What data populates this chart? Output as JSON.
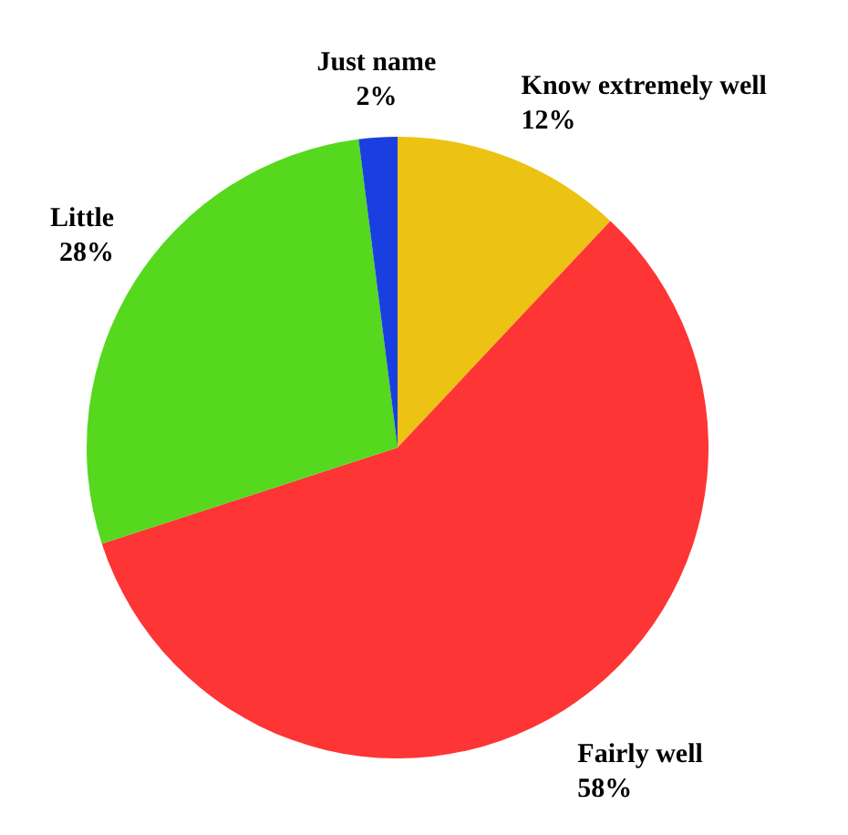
{
  "chart_data": {
    "type": "pie",
    "categories": [
      "Know extremely well",
      "Fairly well",
      "Little",
      "Just name"
    ],
    "values": [
      12,
      58,
      28,
      2
    ],
    "colors": [
      "#ecc213",
      "#fe3535",
      "#55d81d",
      "#1a3fe0"
    ],
    "value_labels": [
      "12%",
      "58%",
      "28%",
      "2%"
    ],
    "legend": false
  }
}
